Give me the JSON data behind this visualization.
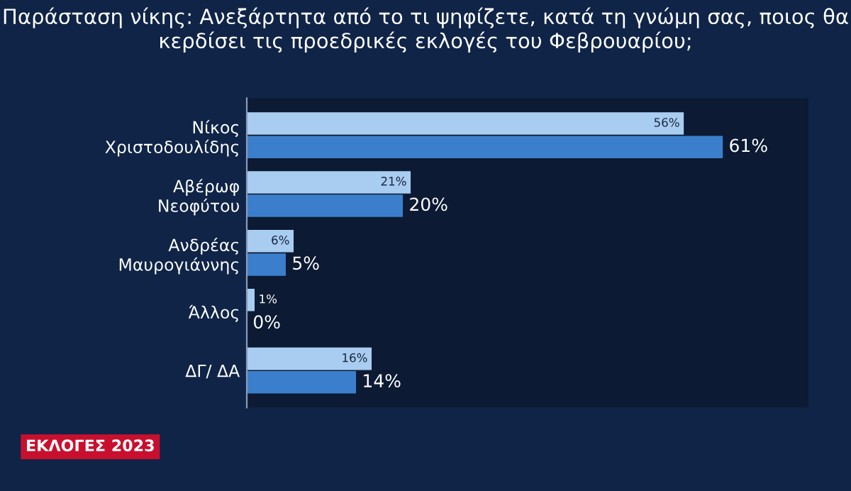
{
  "chart_data": {
    "type": "bar",
    "orientation": "horizontal",
    "title": "Παράσταση νίκης: Ανεξάρτητα από το τι ψηφίζετε, κατά τη γνώμη σας, ποιος θα κερδίσει τις προεδρικές εκλογές του Φεβρουαρίου;",
    "categories": [
      "Νίκος\nΧριστοδουλίδης",
      "Αβέρωφ\nΝεοφύτου",
      "Ανδρέας\nΜαυρογιάννης",
      "Άλλος",
      "ΔΓ/ ΔΑ"
    ],
    "series": [
      {
        "color": "#a9cdf0",
        "values": [
          56,
          21,
          6,
          1,
          16
        ],
        "value_labels": [
          "56%",
          "21%",
          "6%",
          "1%",
          "16%"
        ]
      },
      {
        "color": "#3b7fcc",
        "values": [
          61,
          20,
          5,
          0,
          14
        ],
        "value_labels": [
          "61%",
          "20%",
          "5%",
          "0%",
          "14%"
        ]
      }
    ],
    "annotations": [
      "ΕΚΛΟΓΕΣ 2023"
    ],
    "grid": false,
    "legend": false,
    "tick_labels": "y"
  }
}
